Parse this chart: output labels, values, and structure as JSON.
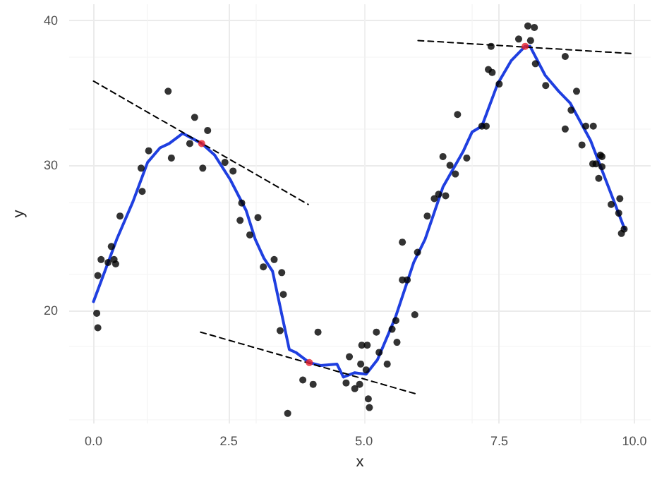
{
  "chart_data": {
    "type": "scatter",
    "xlabel": "x",
    "ylabel": "y",
    "xlim": [
      -0.45,
      10.3
    ],
    "ylim": [
      12.2,
      41.1
    ],
    "xticks": [
      {
        "value": 0,
        "label": "0.0"
      },
      {
        "value": 2.5,
        "label": "2.5"
      },
      {
        "value": 5,
        "label": "5.0"
      },
      {
        "value": 7.5,
        "label": "7.5"
      },
      {
        "value": 10,
        "label": "10.0"
      }
    ],
    "yticks": [
      20,
      30,
      40
    ],
    "grid": true,
    "series": [
      {
        "color": "#000000",
        "marker": "circle",
        "x": [
          1.38,
          1.87,
          2.11,
          1.78,
          1.02,
          1.44,
          0.88,
          2.02,
          2.43,
          2.58,
          0.9,
          2.74,
          0.49,
          2.71,
          3.04,
          2.89,
          0.33,
          0.14,
          0.27,
          0.38,
          0.41,
          0.08,
          0.06,
          0.08,
          3.14,
          3.34,
          3.48,
          3.51,
          3.45,
          4.15,
          3.87,
          4.06,
          3.59,
          4.73,
          4.67,
          4.83,
          4.92,
          4.94,
          4.96,
          5.06,
          5.04,
          5.08,
          5.1,
          5.23,
          5.28,
          5.43,
          5.52,
          5.59,
          5.61,
          5.94,
          5.71,
          5.8,
          5.71,
          5.99,
          6.17,
          6.3,
          6.38,
          6.51,
          6.69,
          6.59,
          6.46,
          6.9,
          6.73,
          7.18,
          7.26,
          7.3,
          7.37,
          7.5,
          7.35,
          7.86,
          8.03,
          8.15,
          8.08,
          8.17,
          8.36,
          8.72,
          8.93,
          8.83,
          8.72,
          9.1,
          9.24,
          9.03,
          9.37,
          9.4,
          9.23,
          9.29,
          9.4,
          9.34,
          9.57,
          9.73,
          9.71,
          9.81,
          9.76
        ],
        "values": [
          35.1,
          33.3,
          32.4,
          31.5,
          31.0,
          30.5,
          29.8,
          29.8,
          30.2,
          29.6,
          28.2,
          27.4,
          26.5,
          26.2,
          26.4,
          25.2,
          24.4,
          23.5,
          23.3,
          23.5,
          23.2,
          22.4,
          19.8,
          18.8,
          23.0,
          23.5,
          22.6,
          21.1,
          18.6,
          18.5,
          15.2,
          14.9,
          12.9,
          16.8,
          15.0,
          14.6,
          14.9,
          16.3,
          17.6,
          17.6,
          15.9,
          13.9,
          13.3,
          18.5,
          17.1,
          16.3,
          18.7,
          19.3,
          17.8,
          19.7,
          22.1,
          22.1,
          24.7,
          24.0,
          26.5,
          27.7,
          28.0,
          27.9,
          29.4,
          30.0,
          30.6,
          30.5,
          33.5,
          32.7,
          32.7,
          36.6,
          36.4,
          35.6,
          38.2,
          38.7,
          39.6,
          39.5,
          38.6,
          37.0,
          35.5,
          37.5,
          35.1,
          33.8,
          32.5,
          32.7,
          32.7,
          31.4,
          30.7,
          30.6,
          30.1,
          30.1,
          29.9,
          29.1,
          27.3,
          27.7,
          26.7,
          25.6,
          25.3
        ]
      },
      {
        "type": "line",
        "color": "#1f3fe0",
        "marker": "none",
        "line_style": "solid",
        "x": [
          0,
          0.43,
          0.73,
          1.0,
          1.23,
          1.4,
          1.65,
          2.0,
          2.24,
          2.53,
          2.82,
          2.99,
          3.15,
          3.31,
          3.62,
          3.74,
          3.99,
          4.2,
          4.5,
          4.62,
          4.83,
          5.04,
          5.25,
          5.58,
          5.92,
          6.13,
          6.46,
          6.84,
          7.0,
          7.18,
          7.47,
          7.72,
          7.98,
          8.07,
          8.35,
          8.6,
          8.81,
          9.19,
          9.52,
          9.82
        ],
        "values": [
          20.6,
          24.9,
          27.5,
          30.2,
          31.2,
          31.5,
          32.2,
          31.5,
          30.7,
          29.0,
          26.9,
          24.9,
          23.6,
          22.7,
          17.3,
          17.1,
          16.4,
          16.2,
          16.3,
          15.4,
          15.7,
          15.6,
          16.6,
          19.5,
          23.3,
          24.9,
          28.5,
          31.0,
          32.3,
          32.7,
          35.6,
          37.2,
          38.2,
          38.2,
          36.2,
          35.1,
          34.3,
          31.7,
          28.5,
          25.6
        ]
      },
      {
        "type": "line",
        "color": "#000000",
        "marker": "none",
        "line_style": "dashed",
        "x": [
          0,
          3.97
        ],
        "values": [
          35.8,
          27.3
        ]
      },
      {
        "type": "line",
        "color": "#000000",
        "marker": "none",
        "line_style": "dashed",
        "x": [
          1.98,
          6.0
        ],
        "values": [
          18.5,
          14.2
        ]
      },
      {
        "type": "line",
        "color": "#000000",
        "marker": "none",
        "line_style": "dashed",
        "x": [
          6.0,
          9.95
        ],
        "values": [
          38.6,
          37.7
        ]
      },
      {
        "color": "#e8202a",
        "marker": "circle",
        "x": [
          2.0,
          3.99,
          7.98
        ],
        "values": [
          31.5,
          16.4,
          38.2
        ]
      }
    ]
  }
}
